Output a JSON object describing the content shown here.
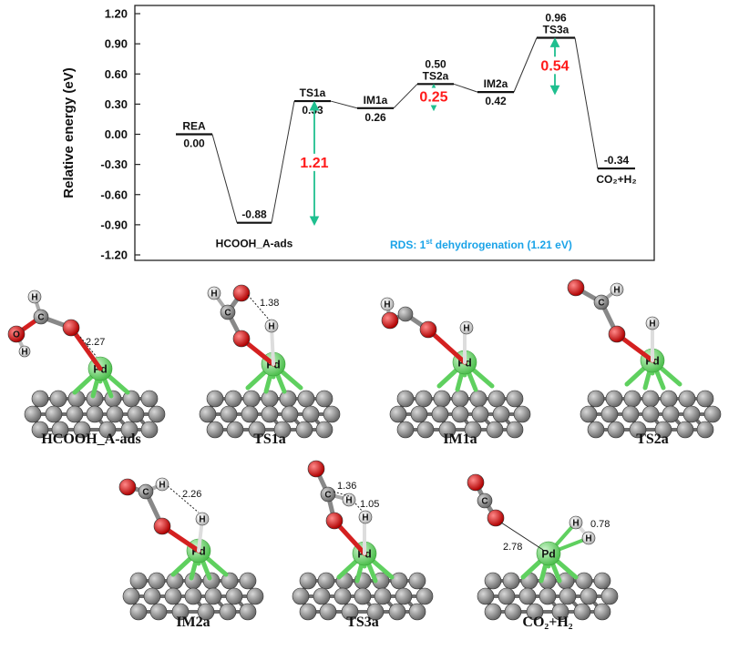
{
  "chart_data": {
    "type": "energy-profile",
    "ylabel": "Relative energy (eV)",
    "ylim": [
      -1.2,
      1.2
    ],
    "yticks": [
      "1.20",
      "0.90",
      "0.60",
      "0.30",
      "0.00",
      "-0.30",
      "-0.60",
      "-0.90",
      "-1.20"
    ],
    "levels": [
      {
        "label": "REA",
        "value": "0.00",
        "energy": 0.0
      },
      {
        "label": "HCOOH_A-ads",
        "value": "-0.88",
        "energy": -0.88
      },
      {
        "label": "TS1a",
        "value": "0.33",
        "energy": 0.33
      },
      {
        "label": "IM1a",
        "value": "0.26",
        "energy": 0.26
      },
      {
        "label": "TS2a",
        "value": "0.50",
        "energy": 0.5
      },
      {
        "label": "IM2a",
        "value": "0.42",
        "energy": 0.42
      },
      {
        "label": "TS3a",
        "value": "0.96",
        "energy": 0.96
      },
      {
        "label": "CO₂+H₂",
        "value": "-0.34",
        "energy": -0.34
      }
    ],
    "barriers": [
      {
        "text": "1.21",
        "from": -0.88,
        "to": 0.33
      },
      {
        "text": "0.25",
        "from": 0.26,
        "to": 0.5
      },
      {
        "text": "0.54",
        "from": 0.42,
        "to": 0.96
      }
    ],
    "annotation": {
      "prefix": "RDS: 1",
      "sup": "st",
      "suffix": " dehydrogenation (1.21 eV)"
    },
    "colors": {
      "arrow": "#1fbf8f",
      "barrier_text": "#ff1a1a",
      "annotation": "#1aa3e8"
    }
  },
  "structures": [
    {
      "caption": "HCOOH_A-ads",
      "distances": [
        "2.27"
      ]
    },
    {
      "caption": "TS1a",
      "distances": [
        "1.38"
      ]
    },
    {
      "caption": "IM1a",
      "distances": []
    },
    {
      "caption": "TS2a",
      "distances": []
    },
    {
      "caption": "IM2a",
      "distances": [
        "2.26"
      ]
    },
    {
      "caption": "TS3a",
      "distances": [
        "1.36",
        "1.05"
      ]
    },
    {
      "caption": "CO₂+H₂",
      "distances": [
        "2.78",
        "0.78"
      ]
    }
  ],
  "atom_labels": {
    "c": "C",
    "o1": "O1",
    "o2": "O2",
    "h1": "H1",
    "h2": "H2",
    "pd": "Pd"
  },
  "atom_colors": {
    "pd": "#7fd97f",
    "o": "#e01818",
    "c": "#707070",
    "h": "#e8e8e8",
    "graphene": "#8a8a8a"
  }
}
